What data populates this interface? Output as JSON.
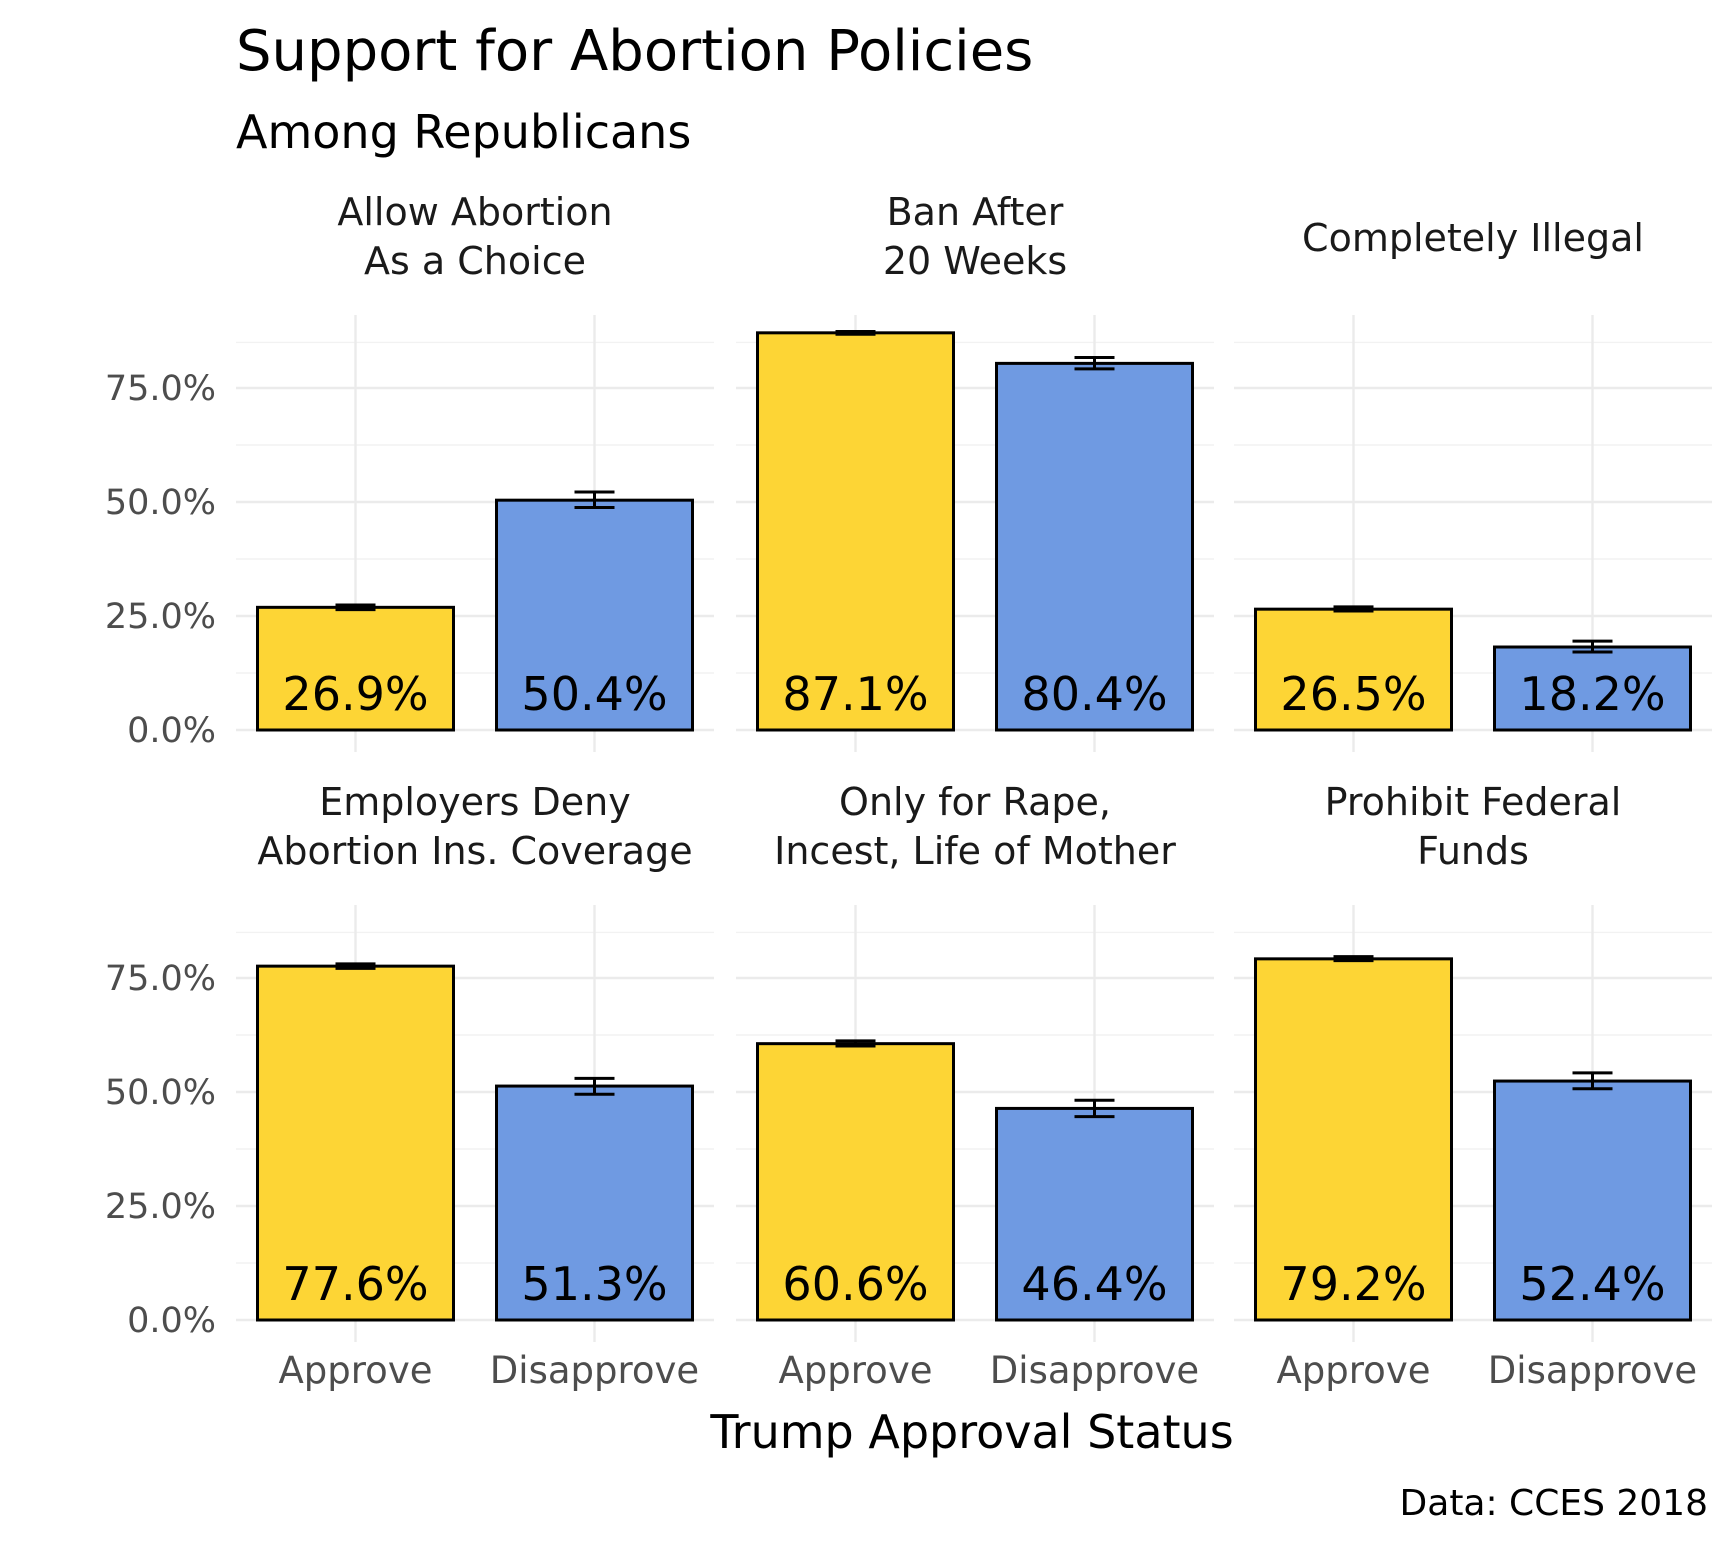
{
  "chart_data": {
    "type": "bar",
    "title": "Support for Abortion Policies",
    "subtitle": "Among Republicans",
    "xlabel": "Trump Approval Status",
    "ylabel": "",
    "caption": "Data: CCES 2018",
    "ylim": [
      0,
      0.87
    ],
    "yticks": [
      "0.0%",
      "25.0%",
      "50.0%",
      "75.0%"
    ],
    "ytick_values": [
      0,
      0.25,
      0.5,
      0.75
    ],
    "categories": [
      "Approve",
      "Disapprove"
    ],
    "colors": {
      "Approve": "#FDD535",
      "Disapprove": "#6F9AE2"
    },
    "grid": true,
    "legend": "none",
    "panels": [
      {
        "title_lines": [
          "Allow Abortion",
          "As a Choice"
        ],
        "values": [
          0.269,
          0.504
        ],
        "labels": [
          "26.9%",
          "50.4%"
        ],
        "err_low": [
          0.264,
          0.488
        ],
        "err_high": [
          0.274,
          0.522
        ]
      },
      {
        "title_lines": [
          "Ban After",
          "20 Weeks"
        ],
        "values": [
          0.871,
          0.804
        ],
        "labels": [
          "87.1%",
          "80.4%"
        ],
        "err_low": [
          0.868,
          0.792
        ],
        "err_high": [
          0.874,
          0.817
        ]
      },
      {
        "title_lines": [
          "Completely Illegal"
        ],
        "values": [
          0.265,
          0.182
        ],
        "labels": [
          "26.5%",
          "18.2%"
        ],
        "err_low": [
          0.261,
          0.171
        ],
        "err_high": [
          0.27,
          0.195
        ]
      },
      {
        "title_lines": [
          "Employers Deny",
          "Abortion Ins. Coverage"
        ],
        "values": [
          0.776,
          0.513
        ],
        "labels": [
          "77.6%",
          "51.3%"
        ],
        "err_low": [
          0.771,
          0.495
        ],
        "err_high": [
          0.781,
          0.53
        ]
      },
      {
        "title_lines": [
          "Only for Rape,",
          "Incest, Life of Mother"
        ],
        "values": [
          0.606,
          0.464
        ],
        "labels": [
          "60.6%",
          "46.4%"
        ],
        "err_low": [
          0.601,
          0.446
        ],
        "err_high": [
          0.612,
          0.482
        ]
      },
      {
        "title_lines": [
          "Prohibit Federal",
          "Funds"
        ],
        "values": [
          0.792,
          0.524
        ],
        "labels": [
          "79.2%",
          "52.4%"
        ],
        "err_low": [
          0.788,
          0.507
        ],
        "err_high": [
          0.797,
          0.542
        ]
      }
    ]
  }
}
